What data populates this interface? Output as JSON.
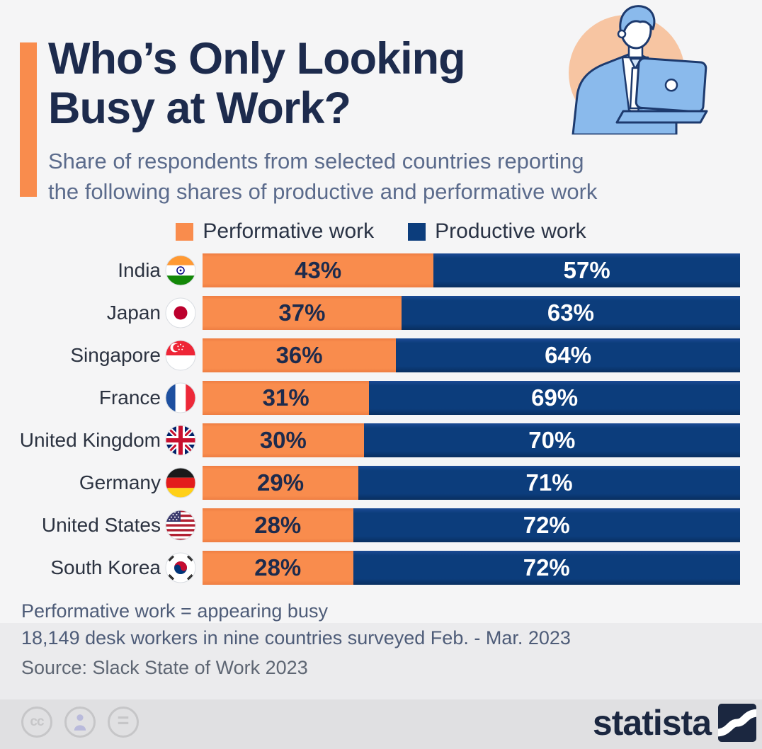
{
  "header": {
    "title_lines": [
      "Who’s Only Looking",
      "Busy at Work?"
    ],
    "subtitle_lines": [
      "Share of respondents from selected countries reporting",
      "the following shares of productive and performative work"
    ],
    "accent_color": "#F98C4D",
    "illustration": "man-with-laptop-illustration"
  },
  "legend": {
    "items": [
      {
        "label": "Performative work",
        "color": "#F98C4D"
      },
      {
        "label": "Productive work",
        "color": "#0C3D7C"
      }
    ]
  },
  "chart_data": {
    "type": "bar",
    "orientation": "horizontal",
    "stacked": true,
    "unit": "%",
    "xlim": [
      0,
      100
    ],
    "categories": [
      "India",
      "Japan",
      "Singapore",
      "France",
      "United Kingdom",
      "Germany",
      "United States",
      "South Korea"
    ],
    "flags": [
      "india-flag-icon",
      "japan-flag-icon",
      "singapore-flag-icon",
      "france-flag-icon",
      "united-kingdom-flag-icon",
      "germany-flag-icon",
      "united-states-flag-icon",
      "south-korea-flag-icon"
    ],
    "series": [
      {
        "name": "Performative work",
        "color": "#F98C4D",
        "label_color": "#1D2B4D",
        "values": [
          43,
          37,
          36,
          31,
          30,
          29,
          28,
          28
        ]
      },
      {
        "name": "Productive work",
        "color": "#0C3D7C",
        "label_color": "#FFFFFF",
        "values": [
          57,
          63,
          64,
          69,
          70,
          71,
          72,
          72
        ]
      }
    ]
  },
  "footnotes": {
    "definition": "Performative work = appearing busy",
    "sample": "18,149 desk workers in nine countries surveyed Feb. - Mar. 2023",
    "source": "Source: Slack State of Work 2023"
  },
  "footer": {
    "logo_text": "statista",
    "license_icons": [
      "cc-icon",
      "attribution-icon",
      "nd-icon"
    ]
  }
}
